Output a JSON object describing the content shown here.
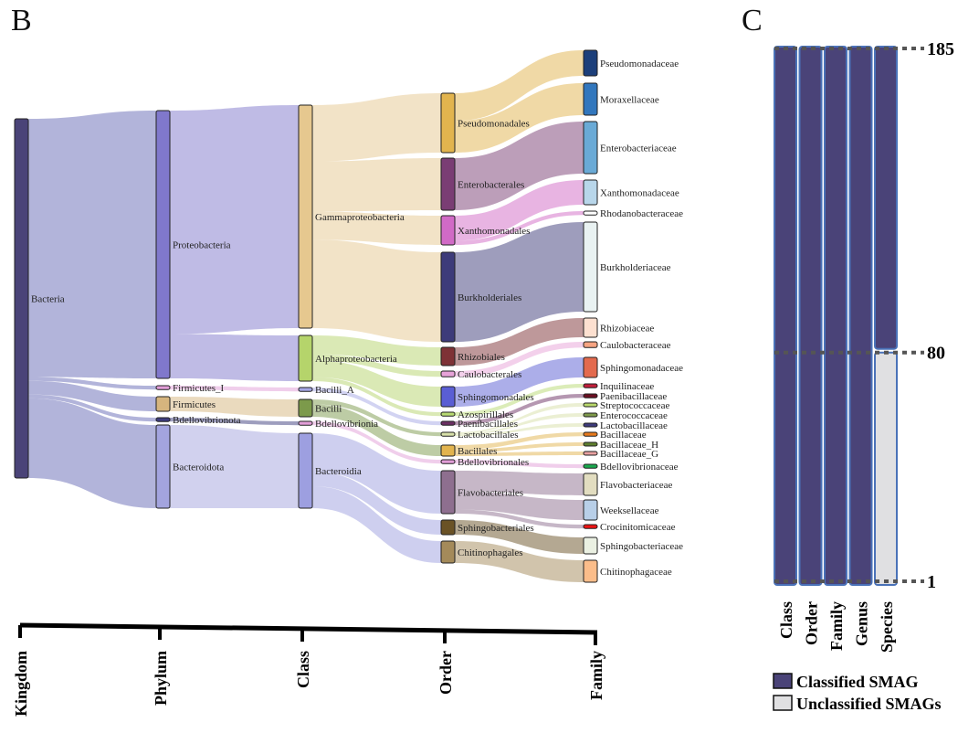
{
  "panels": {
    "b_label": "B",
    "c_label": "C"
  },
  "chart_data": [
    {
      "type": "sankey",
      "title": "",
      "levels": [
        "Kingdom",
        "Phylum",
        "Class",
        "Order",
        "Family"
      ],
      "nodes": [
        {
          "id": "Bacteria",
          "level": 0,
          "color": "#4a4378"
        },
        {
          "id": "Proteobacteria",
          "level": 1,
          "color": "#8078cc"
        },
        {
          "id": "Firmicutes_I",
          "level": 1,
          "color": "#e29ed8"
        },
        {
          "id": "Firmicutes",
          "level": 1,
          "color": "#d6b57e"
        },
        {
          "id": "Bdellovibrionota",
          "level": 1,
          "color": "#3e3d7e"
        },
        {
          "id": "Bacteroidota",
          "level": 1,
          "color": "#a3a4de"
        },
        {
          "id": "Gammaproteobacteria",
          "level": 2,
          "color": "#e6c88f"
        },
        {
          "id": "Alphaproteobacteria",
          "level": 2,
          "color": "#b5d46b"
        },
        {
          "id": "Bacilli_A",
          "level": 2,
          "color": "#a6a7e6"
        },
        {
          "id": "Bacilli",
          "level": 2,
          "color": "#7c9a4b"
        },
        {
          "id": "Bdellovibrionia",
          "level": 2,
          "color": "#e29ed8"
        },
        {
          "id": "Bacteroidia",
          "level": 2,
          "color": "#9d9fe0"
        },
        {
          "id": "Pseudomonadales",
          "level": 3,
          "color": "#e2b44e"
        },
        {
          "id": "Enterobacterales",
          "level": 3,
          "color": "#7a3d74"
        },
        {
          "id": "Xanthomonadales",
          "level": 3,
          "color": "#d16ac6"
        },
        {
          "id": "Burkholderiales",
          "level": 3,
          "color": "#3d3b7a"
        },
        {
          "id": "Rhizobiales",
          "level": 3,
          "color": "#7e3236"
        },
        {
          "id": "Caulobacterales",
          "level": 3,
          "color": "#e7a2d8"
        },
        {
          "id": "Sphingomonadales",
          "level": 3,
          "color": "#5a5ed4"
        },
        {
          "id": "Azospirillales",
          "level": 3,
          "color": "#b8da72"
        },
        {
          "id": "Paenibacillales",
          "level": 3,
          "color": "#6b2f63"
        },
        {
          "id": "Lactobacillales",
          "level": 3,
          "color": "#d7e0a8"
        },
        {
          "id": "Bacillales",
          "level": 3,
          "color": "#e2b44e"
        },
        {
          "id": "Bdellovibrionales",
          "level": 3,
          "color": "#e29ed8"
        },
        {
          "id": "Flavobacteriales",
          "level": 3,
          "color": "#8e6f8f"
        },
        {
          "id": "Sphingobacteriales",
          "level": 3,
          "color": "#6a5226"
        },
        {
          "id": "Chitinophagales",
          "level": 3,
          "color": "#a48a5a"
        },
        {
          "id": "Pseudomonadaceae",
          "level": 4,
          "color": "#1c3f7a"
        },
        {
          "id": "Moraxellaceae",
          "level": 4,
          "color": "#3277bd"
        },
        {
          "id": "Enterobacteriaceae",
          "level": 4,
          "color": "#6aaad6"
        },
        {
          "id": "Xanthomonadaceae",
          "level": 4,
          "color": "#b8d6ea"
        },
        {
          "id": "Rhodanobacteraceae",
          "level": 4,
          "color": "#ffffff"
        },
        {
          "id": "Burkholderiaceae",
          "level": 4,
          "color": "#e9f2f2"
        },
        {
          "id": "Rhizobiaceae",
          "level": 4,
          "color": "#fde0d0"
        },
        {
          "id": "Caulobacteraceae",
          "level": 4,
          "color": "#f7a482"
        },
        {
          "id": "Sphingomonadaceae",
          "level": 4,
          "color": "#e36a4e"
        },
        {
          "id": "Inquilinaceae",
          "level": 4,
          "color": "#c11f3a"
        },
        {
          "id": "Paenibacillaceae",
          "level": 4,
          "color": "#6b0e22"
        },
        {
          "id": "Streptococcaceae",
          "level": 4,
          "color": "#b8d86a"
        },
        {
          "id": "Enterococcaceae",
          "level": 4,
          "color": "#7f9a4a"
        },
        {
          "id": "Lactobacillaceae",
          "level": 4,
          "color": "#3d3b7a"
        },
        {
          "id": "Bacillaceae",
          "level": 4,
          "color": "#e87a1c"
        },
        {
          "id": "Bacillaceae_H",
          "level": 4,
          "color": "#5f7f2e"
        },
        {
          "id": "Bacillaceae_G",
          "level": 4,
          "color": "#e8a0a0"
        },
        {
          "id": "Bdellovibrionaceae",
          "level": 4,
          "color": "#1aa84e"
        },
        {
          "id": "Flavobacteriaceae",
          "level": 4,
          "color": "#e2ddc0"
        },
        {
          "id": "Weeksellaceae",
          "level": 4,
          "color": "#b8cfe8"
        },
        {
          "id": "Crocinitomicaceae",
          "level": 4,
          "color": "#f01414"
        },
        {
          "id": "Sphingobacteriaceae",
          "level": 4,
          "color": "#eaf0e2"
        },
        {
          "id": "Chitinophagaceae",
          "level": 4,
          "color": "#fbbd8a"
        }
      ],
      "links": [
        {
          "source": "Bacteria",
          "target": "Proteobacteria",
          "value": 133
        },
        {
          "source": "Bacteria",
          "target": "Firmicutes_I",
          "value": 2
        },
        {
          "source": "Bacteria",
          "target": "Firmicutes",
          "value": 7
        },
        {
          "source": "Bacteria",
          "target": "Bdellovibrionota",
          "value": 2
        },
        {
          "source": "Bacteria",
          "target": "Bacteroidota",
          "value": 41
        },
        {
          "source": "Proteobacteria",
          "target": "Gammaproteobacteria",
          "value": 111
        },
        {
          "source": "Proteobacteria",
          "target": "Alphaproteobacteria",
          "value": 22
        },
        {
          "source": "Firmicutes_I",
          "target": "Bacilli_A",
          "value": 2
        },
        {
          "source": "Firmicutes",
          "target": "Bacilli",
          "value": 7
        },
        {
          "source": "Bdellovibrionota",
          "target": "Bdellovibrionia",
          "value": 2
        },
        {
          "source": "Bacteroidota",
          "target": "Bacteroidia",
          "value": 41
        },
        {
          "source": "Gammaproteobacteria",
          "target": "Pseudomonadales",
          "value": 28
        },
        {
          "source": "Gammaproteobacteria",
          "target": "Enterobacterales",
          "value": 25
        },
        {
          "source": "Gammaproteobacteria",
          "target": "Xanthomonadales",
          "value": 14
        },
        {
          "source": "Gammaproteobacteria",
          "target": "Burkholderiales",
          "value": 44
        },
        {
          "source": "Alphaproteobacteria",
          "target": "Rhizobiales",
          "value": 9
        },
        {
          "source": "Alphaproteobacteria",
          "target": "Caulobacterales",
          "value": 3
        },
        {
          "source": "Alphaproteobacteria",
          "target": "Sphingomonadales",
          "value": 8
        },
        {
          "source": "Alphaproteobacteria",
          "target": "Azospirillales",
          "value": 2
        },
        {
          "source": "Bacilli_A",
          "target": "Paenibacillales",
          "value": 2
        },
        {
          "source": "Bacilli",
          "target": "Lactobacillales",
          "value": 2
        },
        {
          "source": "Bacilli",
          "target": "Bacillales",
          "value": 5
        },
        {
          "source": "Bdellovibrionia",
          "target": "Bdellovibrionales",
          "value": 2
        },
        {
          "source": "Bacteroidia",
          "target": "Flavobacteriales",
          "value": 21
        },
        {
          "source": "Bacteroidia",
          "target": "Sphingobacteriales",
          "value": 8
        },
        {
          "source": "Bacteroidia",
          "target": "Chitinophagales",
          "value": 12
        },
        {
          "source": "Pseudomonadales",
          "target": "Pseudomonadaceae",
          "value": 13
        },
        {
          "source": "Pseudomonadales",
          "target": "Moraxellaceae",
          "value": 15
        },
        {
          "source": "Enterobacterales",
          "target": "Enterobacteriaceae",
          "value": 25
        },
        {
          "source": "Xanthomonadales",
          "target": "Xanthomonadaceae",
          "value": 12
        },
        {
          "source": "Xanthomonadales",
          "target": "Rhodanobacteraceae",
          "value": 2
        },
        {
          "source": "Burkholderiales",
          "target": "Burkholderiaceae",
          "value": 44
        },
        {
          "source": "Rhizobiales",
          "target": "Rhizobiaceae",
          "value": 9
        },
        {
          "source": "Caulobacterales",
          "target": "Caulobacteraceae",
          "value": 3
        },
        {
          "source": "Sphingomonadales",
          "target": "Sphingomonadaceae",
          "value": 8
        },
        {
          "source": "Azospirillales",
          "target": "Inquilinaceae",
          "value": 2
        },
        {
          "source": "Paenibacillales",
          "target": "Paenibacillaceae",
          "value": 2
        },
        {
          "source": "Lactobacillales",
          "target": "Streptococcaceae",
          "value": 0.7
        },
        {
          "source": "Lactobacillales",
          "target": "Enterococcaceae",
          "value": 0.7
        },
        {
          "source": "Lactobacillales",
          "target": "Lactobacillaceae",
          "value": 0.6
        },
        {
          "source": "Bacillales",
          "target": "Bacillaceae",
          "value": 2
        },
        {
          "source": "Bacillales",
          "target": "Bacillaceae_H",
          "value": 1.5
        },
        {
          "source": "Bacillales",
          "target": "Bacillaceae_G",
          "value": 1.5
        },
        {
          "source": "Bdellovibrionales",
          "target": "Bdellovibrionaceae",
          "value": 2
        },
        {
          "source": "Flavobacteriales",
          "target": "Flavobacteriaceae",
          "value": 10
        },
        {
          "source": "Flavobacteriales",
          "target": "Weeksellaceae",
          "value": 9
        },
        {
          "source": "Flavobacteriales",
          "target": "Crocinitomicaceae",
          "value": 2
        },
        {
          "source": "Sphingobacteriales",
          "target": "Sphingobacteriaceae",
          "value": 8
        },
        {
          "source": "Chitinophagales",
          "target": "Chitinophagaceae",
          "value": 12
        }
      ]
    },
    {
      "type": "bar",
      "title": "",
      "categories": [
        "Class",
        "Order",
        "Family",
        "Genus",
        "Species"
      ],
      "series": [
        {
          "name": "Classified SMAG",
          "color": "#4a4378",
          "values": [
            185,
            185,
            185,
            185,
            105
          ]
        },
        {
          "name": "Unclassified SMAGs",
          "color": "#e0e0e2",
          "values": [
            0,
            0,
            0,
            0,
            80
          ]
        }
      ],
      "reference_lines": [
        {
          "value": 185,
          "label": "185"
        },
        {
          "value": 80,
          "label": "80"
        },
        {
          "value": 1,
          "label": "1"
        }
      ],
      "ylim": [
        1,
        185
      ],
      "stacked": true,
      "legend": "bottom",
      "legend_entries": [
        "Classified SMAG",
        "Unclassified SMAGs"
      ]
    }
  ]
}
